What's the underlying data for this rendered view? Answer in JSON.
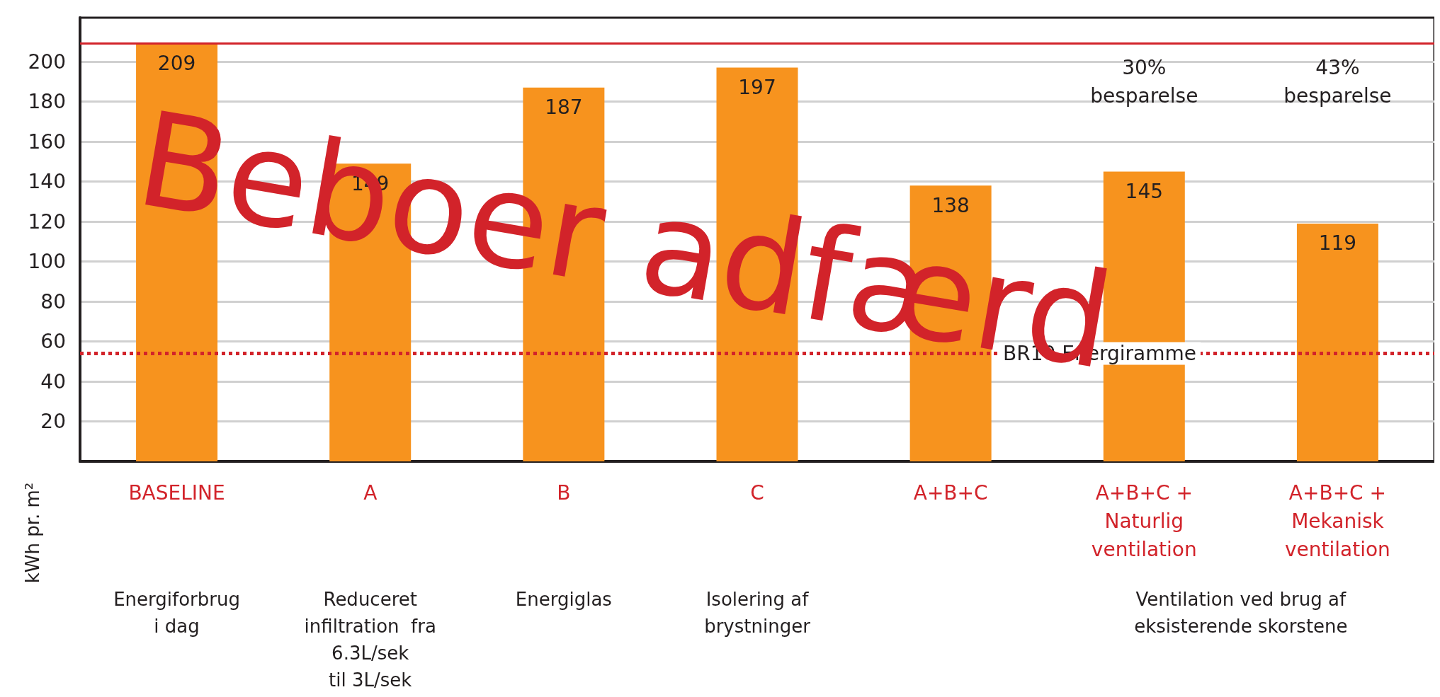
{
  "chart_data": {
    "type": "bar",
    "ylabel": "kWh pr. m²",
    "categories": [
      "BASELINE",
      "A",
      "B",
      "C",
      "A+B+C",
      "A+B+C +\nNaturlig\nventilation",
      "A+B+C +\nMekanisk\nventilation"
    ],
    "values": [
      209,
      149,
      187,
      197,
      138,
      145,
      119
    ],
    "color": "#f7931e",
    "data_labels": true,
    "ylim": [
      0,
      222
    ],
    "yticks": [
      20,
      40,
      60,
      80,
      100,
      120,
      140,
      160,
      180,
      200
    ],
    "grid": "y",
    "ref_lines": [
      {
        "axis": "y",
        "value": 209,
        "color": "#d2232a",
        "line_style": "solid"
      },
      {
        "axis": "y",
        "value": 54,
        "label": "BR10 Energiramme",
        "color": "#d2232a",
        "line_style": "dotted"
      }
    ],
    "annotations": [
      "30%\nbesparelse",
      "43%\nbesparelse",
      "Beboer adfærd",
      "Energiforbrug\ni dag",
      "Reduceret\ninfiltration  fra\n6.3L/sek\ntil 3L/sek",
      "Energiglas",
      "Isolering af\nbrystninger",
      "Ventilation ved brug af\neksisterende skorstene"
    ]
  }
}
